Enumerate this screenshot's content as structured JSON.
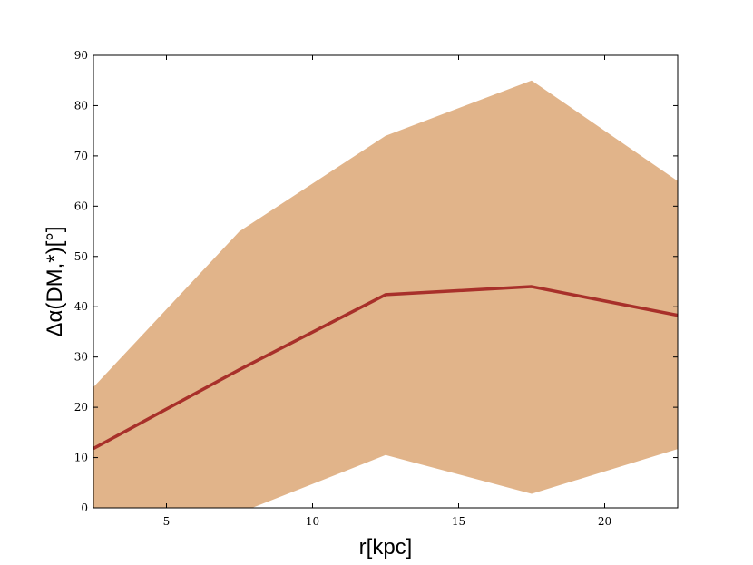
{
  "chart_data": {
    "type": "area",
    "x": [
      2.5,
      7.5,
      12.5,
      17.5,
      22.5
    ],
    "xlabel": "r[kpc]",
    "ylabel": "Δα(DM,*)[°]",
    "xlim": [
      2.5,
      22.5
    ],
    "ylim": [
      0,
      90
    ],
    "xticks": [
      5,
      10,
      15,
      20
    ],
    "yticks": [
      0,
      10,
      20,
      30,
      40,
      50,
      60,
      70,
      80,
      90
    ],
    "grid": false,
    "series": [
      {
        "kind": "band",
        "upper": [
          24,
          55,
          74,
          85,
          65
        ],
        "lower": [
          -5,
          -1,
          10.5,
          2.8,
          11.7
        ],
        "color": "#e1b48a"
      },
      {
        "kind": "line",
        "values": [
          11.8,
          27.5,
          42.4,
          44.0,
          38.3
        ],
        "color": "#a8302a"
      }
    ]
  }
}
